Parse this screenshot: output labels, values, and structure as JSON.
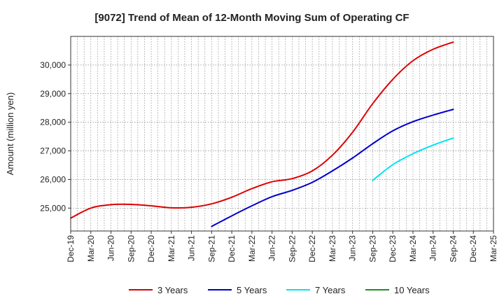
{
  "chart_data": {
    "type": "line",
    "title": "[9072]  Trend of Mean of 12-Month Moving Sum of Operating CF",
    "xlabel": "",
    "ylabel": "Amount (million yen)",
    "ylim": [
      24200,
      31000
    ],
    "yticks": [
      25000,
      26000,
      27000,
      28000,
      29000,
      30000
    ],
    "ytick_labels": [
      "25,000",
      "26,000",
      "27,000",
      "28,000",
      "29,000",
      "30,000"
    ],
    "x_labels": [
      "Dec-19",
      "Mar-20",
      "Jun-20",
      "Sep-20",
      "Dec-20",
      "Mar-21",
      "Jun-21",
      "Sep-21",
      "Dec-21",
      "Mar-22",
      "Jun-22",
      "Sep-22",
      "Dec-22",
      "Mar-23",
      "Jun-23",
      "Sep-23",
      "Dec-23",
      "Mar-24",
      "Jun-24",
      "Sep-24",
      "Dec-24",
      "Mar-25"
    ],
    "x_month_index_of_labels": [
      0,
      3,
      6,
      9,
      12,
      15,
      18,
      21,
      24,
      27,
      30,
      33,
      36,
      39,
      42,
      45,
      48,
      51,
      54,
      57,
      60,
      63
    ],
    "x_range_months": [
      0,
      63
    ],
    "grid": true,
    "legend_position": "bottom",
    "series": [
      {
        "name": "3 Years",
        "color": "#dd0000",
        "x_months": [
          0,
          3,
          6,
          9,
          12,
          15,
          18,
          21,
          24,
          27,
          30,
          33,
          36,
          39,
          42,
          45,
          48,
          51,
          54,
          57
        ],
        "values": [
          24650,
          25000,
          25120,
          25130,
          25080,
          25010,
          25030,
          25150,
          25380,
          25680,
          25920,
          26030,
          26300,
          26850,
          27650,
          28650,
          29500,
          30150,
          30550,
          30800
        ]
      },
      {
        "name": "5 Years",
        "color": "#0000cc",
        "x_months": [
          21,
          24,
          27,
          30,
          33,
          36,
          39,
          42,
          45,
          48,
          51,
          54,
          57
        ],
        "values": [
          24360,
          24730,
          25080,
          25400,
          25620,
          25900,
          26300,
          26750,
          27250,
          27700,
          28020,
          28250,
          28450
        ]
      },
      {
        "name": "7 Years",
        "color": "#00e5ee",
        "x_months": [
          45,
          48,
          51,
          54,
          57
        ],
        "values": [
          25970,
          26520,
          26900,
          27200,
          27450
        ]
      },
      {
        "name": "10 Years",
        "color": "#228b22",
        "x_months": [],
        "values": []
      }
    ]
  }
}
